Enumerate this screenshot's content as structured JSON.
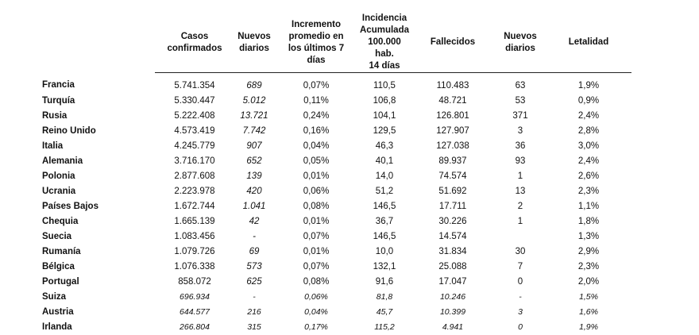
{
  "table": {
    "header": [
      null,
      [
        "Casos",
        "confirmados"
      ],
      [
        "Nuevos",
        "diarios"
      ],
      [
        "Incremento",
        "promedio en",
        "los últimos 7",
        "días"
      ],
      [
        "Incidencia",
        "Acumulada",
        "100.000 hab.",
        "14 días"
      ],
      [
        "Fallecidos"
      ],
      [
        "Nuevos",
        "diarios"
      ],
      [
        "Letalidad"
      ]
    ],
    "rows": [
      [
        "Francia",
        "5.741.354",
        "689",
        "0,07%",
        "110,5",
        "110.483",
        "63",
        "1,9%"
      ],
      [
        "Turquía",
        "5.330.447",
        "5.012",
        "0,11%",
        "106,8",
        "48.721",
        "53",
        "0,9%"
      ],
      [
        "Rusia",
        "5.222.408",
        "13.721",
        "0,24%",
        "104,1",
        "126.801",
        "371",
        "2,4%"
      ],
      [
        "Reino Unido",
        "4.573.419",
        "7.742",
        "0,16%",
        "129,5",
        "127.907",
        "3",
        "2,8%"
      ],
      [
        "Italia",
        "4.245.779",
        "907",
        "0,04%",
        "46,3",
        "127.038",
        "36",
        "3,0%"
      ],
      [
        "Alemania",
        "3.716.170",
        "652",
        "0,05%",
        "40,1",
        "89.937",
        "93",
        "2,4%"
      ],
      [
        "Polonia",
        "2.877.608",
        "139",
        "0,01%",
        "14,0",
        "74.574",
        "1",
        "2,6%"
      ],
      [
        "Ucrania",
        "2.223.978",
        "420",
        "0,06%",
        "51,2",
        "51.692",
        "13",
        "2,3%"
      ],
      [
        "Países Bajos",
        "1.672.744",
        "1.041",
        "0,08%",
        "146,5",
        "17.711",
        "2",
        "1,1%"
      ],
      [
        "Chequia",
        "1.665.139",
        "42",
        "0,01%",
        "36,7",
        "30.226",
        "1",
        "1,8%"
      ],
      [
        "Suecia",
        "1.083.456",
        "-",
        "0,07%",
        "146,5",
        "14.574",
        null,
        "1,3%"
      ],
      [
        "Rumanía",
        "1.079.726",
        "69",
        "0,01%",
        "10,0",
        "31.834",
        "30",
        "2,9%"
      ],
      [
        "Bélgica",
        "1.076.338",
        "573",
        "0,07%",
        "132,1",
        "25.088",
        "7",
        "2,3%"
      ],
      [
        "Portugal",
        "858.072",
        "625",
        "0,08%",
        "91,6",
        "17.047",
        "0",
        "2,0%"
      ],
      [
        "Suiza",
        "696.934",
        "-",
        "0,06%",
        "81,8",
        "10.246",
        "-",
        "1,5%"
      ],
      [
        "Austria",
        "644.577",
        "216",
        "0,04%",
        "45,7",
        "10.399",
        "3",
        "1,6%"
      ],
      [
        "Irlanda",
        "266.804",
        "315",
        "0,17%",
        "115,2",
        "4.941",
        "0",
        "1,9%"
      ]
    ]
  }
}
